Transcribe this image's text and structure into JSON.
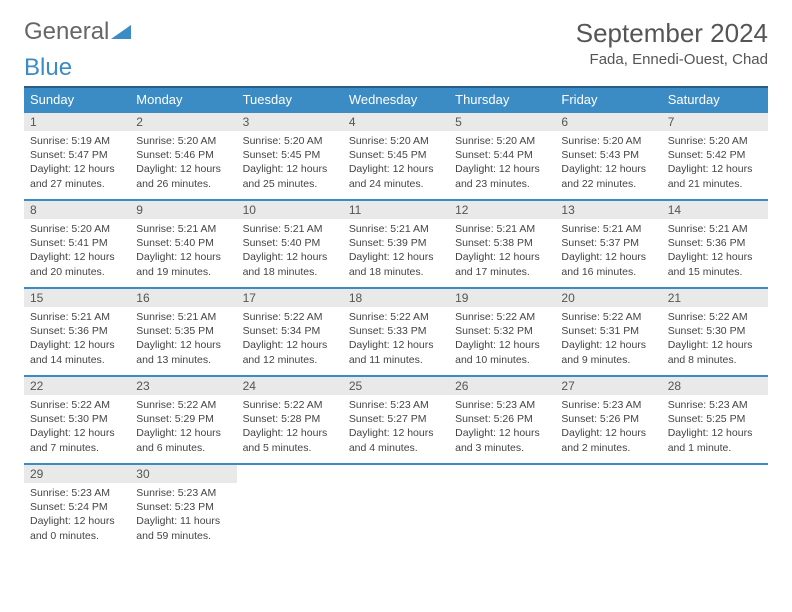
{
  "logo": {
    "text1": "General",
    "text2": "Blue"
  },
  "title": "September 2024",
  "location": "Fada, Ennedi-Ouest, Chad",
  "colors": {
    "header_bg": "#3b8bc4",
    "header_border": "#2a5d85",
    "daynum_bg": "#e9e9e9",
    "text": "#444444"
  },
  "weekdays": [
    "Sunday",
    "Monday",
    "Tuesday",
    "Wednesday",
    "Thursday",
    "Friday",
    "Saturday"
  ],
  "weeks": [
    [
      {
        "n": "1",
        "sr": "5:19 AM",
        "ss": "5:47 PM",
        "dl": "12 hours and 27 minutes."
      },
      {
        "n": "2",
        "sr": "5:20 AM",
        "ss": "5:46 PM",
        "dl": "12 hours and 26 minutes."
      },
      {
        "n": "3",
        "sr": "5:20 AM",
        "ss": "5:45 PM",
        "dl": "12 hours and 25 minutes."
      },
      {
        "n": "4",
        "sr": "5:20 AM",
        "ss": "5:45 PM",
        "dl": "12 hours and 24 minutes."
      },
      {
        "n": "5",
        "sr": "5:20 AM",
        "ss": "5:44 PM",
        "dl": "12 hours and 23 minutes."
      },
      {
        "n": "6",
        "sr": "5:20 AM",
        "ss": "5:43 PM",
        "dl": "12 hours and 22 minutes."
      },
      {
        "n": "7",
        "sr": "5:20 AM",
        "ss": "5:42 PM",
        "dl": "12 hours and 21 minutes."
      }
    ],
    [
      {
        "n": "8",
        "sr": "5:20 AM",
        "ss": "5:41 PM",
        "dl": "12 hours and 20 minutes."
      },
      {
        "n": "9",
        "sr": "5:21 AM",
        "ss": "5:40 PM",
        "dl": "12 hours and 19 minutes."
      },
      {
        "n": "10",
        "sr": "5:21 AM",
        "ss": "5:40 PM",
        "dl": "12 hours and 18 minutes."
      },
      {
        "n": "11",
        "sr": "5:21 AM",
        "ss": "5:39 PM",
        "dl": "12 hours and 18 minutes."
      },
      {
        "n": "12",
        "sr": "5:21 AM",
        "ss": "5:38 PM",
        "dl": "12 hours and 17 minutes."
      },
      {
        "n": "13",
        "sr": "5:21 AM",
        "ss": "5:37 PM",
        "dl": "12 hours and 16 minutes."
      },
      {
        "n": "14",
        "sr": "5:21 AM",
        "ss": "5:36 PM",
        "dl": "12 hours and 15 minutes."
      }
    ],
    [
      {
        "n": "15",
        "sr": "5:21 AM",
        "ss": "5:36 PM",
        "dl": "12 hours and 14 minutes."
      },
      {
        "n": "16",
        "sr": "5:21 AM",
        "ss": "5:35 PM",
        "dl": "12 hours and 13 minutes."
      },
      {
        "n": "17",
        "sr": "5:22 AM",
        "ss": "5:34 PM",
        "dl": "12 hours and 12 minutes."
      },
      {
        "n": "18",
        "sr": "5:22 AM",
        "ss": "5:33 PM",
        "dl": "12 hours and 11 minutes."
      },
      {
        "n": "19",
        "sr": "5:22 AM",
        "ss": "5:32 PM",
        "dl": "12 hours and 10 minutes."
      },
      {
        "n": "20",
        "sr": "5:22 AM",
        "ss": "5:31 PM",
        "dl": "12 hours and 9 minutes."
      },
      {
        "n": "21",
        "sr": "5:22 AM",
        "ss": "5:30 PM",
        "dl": "12 hours and 8 minutes."
      }
    ],
    [
      {
        "n": "22",
        "sr": "5:22 AM",
        "ss": "5:30 PM",
        "dl": "12 hours and 7 minutes."
      },
      {
        "n": "23",
        "sr": "5:22 AM",
        "ss": "5:29 PM",
        "dl": "12 hours and 6 minutes."
      },
      {
        "n": "24",
        "sr": "5:22 AM",
        "ss": "5:28 PM",
        "dl": "12 hours and 5 minutes."
      },
      {
        "n": "25",
        "sr": "5:23 AM",
        "ss": "5:27 PM",
        "dl": "12 hours and 4 minutes."
      },
      {
        "n": "26",
        "sr": "5:23 AM",
        "ss": "5:26 PM",
        "dl": "12 hours and 3 minutes."
      },
      {
        "n": "27",
        "sr": "5:23 AM",
        "ss": "5:26 PM",
        "dl": "12 hours and 2 minutes."
      },
      {
        "n": "28",
        "sr": "5:23 AM",
        "ss": "5:25 PM",
        "dl": "12 hours and 1 minute."
      }
    ],
    [
      {
        "n": "29",
        "sr": "5:23 AM",
        "ss": "5:24 PM",
        "dl": "12 hours and 0 minutes."
      },
      {
        "n": "30",
        "sr": "5:23 AM",
        "ss": "5:23 PM",
        "dl": "11 hours and 59 minutes."
      },
      null,
      null,
      null,
      null,
      null
    ]
  ],
  "labels": {
    "sunrise": "Sunrise: ",
    "sunset": "Sunset: ",
    "daylight": "Daylight: "
  }
}
